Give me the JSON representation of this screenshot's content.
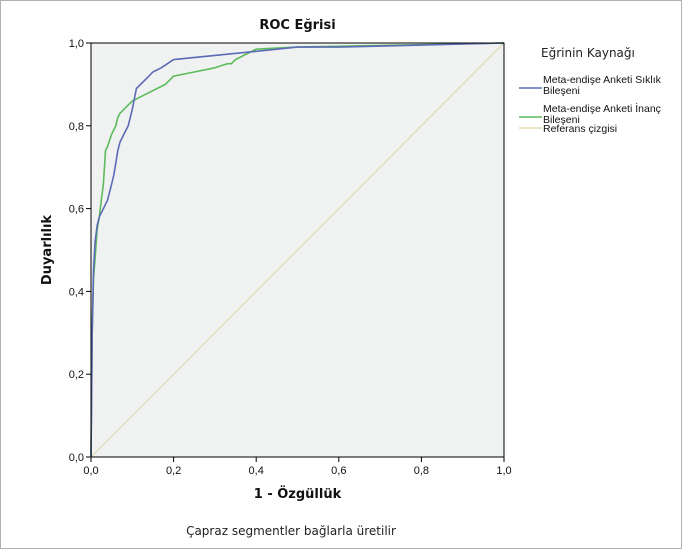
{
  "chart_data": {
    "type": "line",
    "title": "ROC Eğrisi",
    "xlabel": "1 - Özgüllük",
    "ylabel": "Duyarlılık",
    "xlim": [
      0,
      1
    ],
    "ylim": [
      0,
      1
    ],
    "xticks": [
      "0,0",
      "0,2",
      "0,4",
      "0,6",
      "0,8",
      "1,0"
    ],
    "yticks": [
      "0,0",
      "0,2",
      "0,4",
      "0,6",
      "0,8",
      "1,0"
    ],
    "grid": false,
    "legend_position": "right",
    "legend_title": "Eğrinin Kaynağı",
    "footnote": "Çapraz segmentler bağlarla üretilir",
    "series": [
      {
        "name": "Meta-endişe Anketi Sıklık Bileşeni",
        "color": "#5b6bb5",
        "x": [
          0,
          0.003,
          0.006,
          0.01,
          0.015,
          0.02,
          0.025,
          0.03,
          0.04,
          0.05,
          0.055,
          0.06,
          0.065,
          0.07,
          0.08,
          0.09,
          0.1,
          0.11,
          0.13,
          0.15,
          0.17,
          0.2,
          0.3,
          0.4,
          0.5,
          0.6,
          0.8,
          1.0
        ],
        "y": [
          0,
          0.3,
          0.45,
          0.52,
          0.56,
          0.58,
          0.59,
          0.6,
          0.62,
          0.66,
          0.68,
          0.71,
          0.74,
          0.76,
          0.78,
          0.8,
          0.84,
          0.89,
          0.91,
          0.93,
          0.94,
          0.96,
          0.97,
          0.98,
          0.99,
          0.99,
          0.995,
          1.0
        ]
      },
      {
        "name": "Meta-endişe Anketi İnanç Bileşeni",
        "color": "#5cbb5a",
        "x": [
          0,
          0.003,
          0.006,
          0.01,
          0.015,
          0.02,
          0.025,
          0.03,
          0.035,
          0.04,
          0.05,
          0.06,
          0.065,
          0.07,
          0.08,
          0.1,
          0.12,
          0.14,
          0.16,
          0.18,
          0.2,
          0.25,
          0.3,
          0.33,
          0.34,
          0.35,
          0.37,
          0.4,
          0.45,
          0.5,
          1.0
        ],
        "y": [
          0,
          0.3,
          0.43,
          0.48,
          0.55,
          0.58,
          0.62,
          0.66,
          0.74,
          0.75,
          0.78,
          0.8,
          0.82,
          0.83,
          0.84,
          0.86,
          0.87,
          0.88,
          0.89,
          0.9,
          0.92,
          0.93,
          0.94,
          0.95,
          0.95,
          0.96,
          0.97,
          0.985,
          0.988,
          0.99,
          1.0
        ]
      },
      {
        "name": "Referans çizgisi",
        "color": "#e3dbb0",
        "x": [
          0,
          1
        ],
        "y": [
          0,
          1
        ]
      }
    ]
  }
}
